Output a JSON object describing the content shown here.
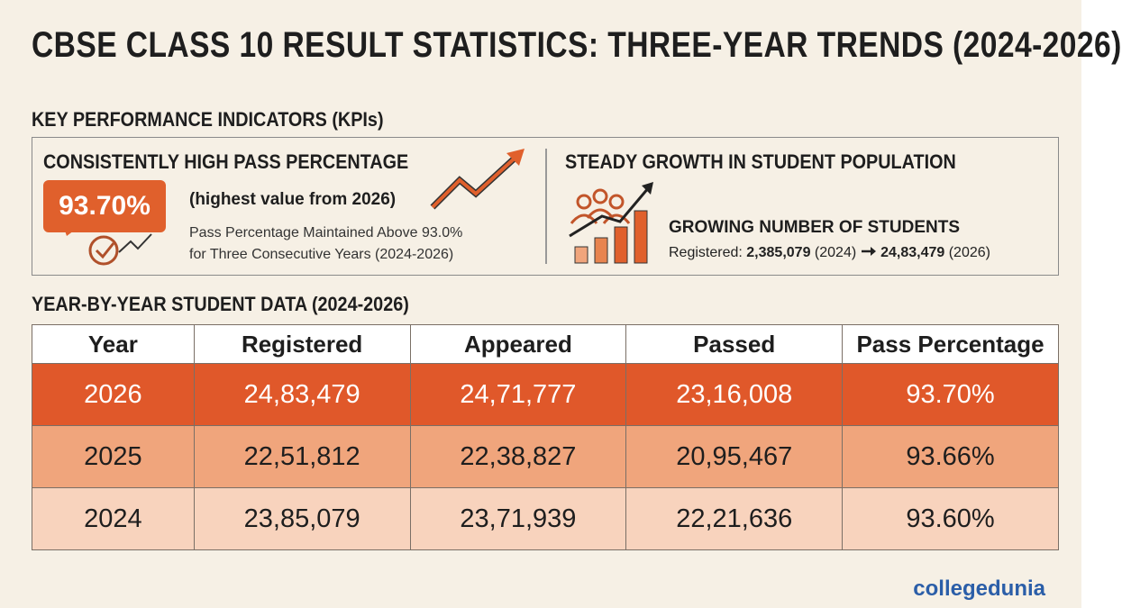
{
  "header": {
    "title": "CBSE CLASS 10 RESULT STATISTICS: THREE-YEAR TRENDS (2024-2026)"
  },
  "kpis": {
    "heading": "KEY PERFORMANCE INDICATORS (KPIs)",
    "pass": {
      "heading": "CONSISTENTLY HIGH PASS PERCENTAGE",
      "badge": "93.70%",
      "note": "(highest value from 2026)",
      "lines": [
        "Pass Percentage Maintained Above 93.0%",
        "for Three Consecutive Years (2024-2026)"
      ]
    },
    "growth": {
      "heading": "STEADY GROWTH IN STUDENT POPULATION",
      "subheading": "GROWING NUMBER OF STUDENTS",
      "label": "Registered:",
      "from": "2,385,079",
      "from_year": "(2024)",
      "to": "24,83,479",
      "to_year": "(2026)"
    }
  },
  "table": {
    "heading": "YEAR-BY-YEAR STUDENT DATA (2024-2026)",
    "columns": [
      "Year",
      "Registered",
      "Appeared",
      "Passed",
      "Pass Percentage"
    ],
    "rows": [
      [
        "2026",
        "24,83,479",
        "24,71,777",
        "23,16,008",
        "93.70%"
      ],
      [
        "2025",
        "22,51,812",
        "22,38,827",
        "20,95,467",
        "93.66%"
      ],
      [
        "2024",
        "23,85,079",
        "23,71,939",
        "22,21,636",
        "93.60%"
      ]
    ]
  },
  "footer": {
    "brand": "collegedunia"
  }
}
